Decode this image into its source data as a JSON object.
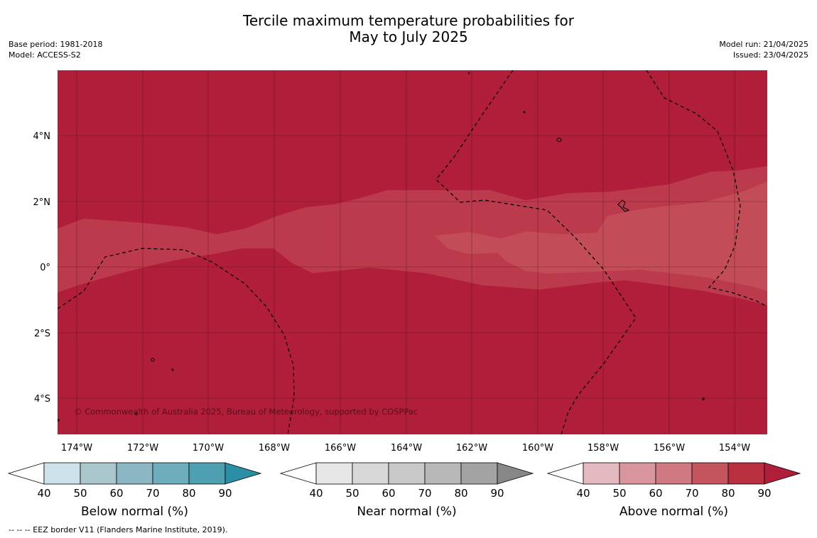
{
  "title_line1": "Tercile maximum temperature probabilities for",
  "title_line2": "May to July 2025",
  "meta_left": {
    "base_period": "Base period: 1981-2018",
    "model": "Model: ACCESS-S2"
  },
  "meta_right": {
    "model_run": "Model run: 21/04/2025",
    "issued": "Issued: 23/04/2025"
  },
  "copyright": "© Commonwealth of Australia 2025, Bureau of Meteorology, supported by COSPPac",
  "lon_labels": [
    "174°W",
    "172°W",
    "170°W",
    "168°W",
    "166°W",
    "164°W",
    "162°W",
    "160°W",
    "158°W",
    "156°W",
    "154°W"
  ],
  "lat_labels": [
    "4°N",
    "2°N",
    "0°",
    "2°S",
    "4°S"
  ],
  "colorbars": [
    {
      "name": "Below normal (%)",
      "ticks": [
        "40",
        "50",
        "60",
        "70",
        "80",
        "90"
      ],
      "colors": [
        "#cde3e9",
        "#a9c7cc",
        "#8bb7c4",
        "#6eadbb",
        "#4ea0b0",
        "#2a8fa4"
      ]
    },
    {
      "name": "Near normal (%)",
      "ticks": [
        "40",
        "50",
        "60",
        "70",
        "80",
        "90"
      ],
      "colors": [
        "#e6e6e6",
        "#d8d8d8",
        "#c9c9c9",
        "#b8b8b8",
        "#a3a3a3",
        "#878787"
      ]
    },
    {
      "name": "Above normal (%)",
      "ticks": [
        "40",
        "50",
        "60",
        "70",
        "80",
        "90"
      ],
      "colors": [
        "#e5b9c0",
        "#d9959e",
        "#cf7a83",
        "#c4555f",
        "#b8303f",
        "#b01e39"
      ]
    }
  ],
  "map_colors": {
    "above_90": "#b01e39",
    "above_80": "#bb3a4c",
    "above_70": "#c24d58",
    "land": "#000000"
  },
  "footer": "--  --  -- EEZ border V11 (Flanders Marine Institute, 2019)."
}
